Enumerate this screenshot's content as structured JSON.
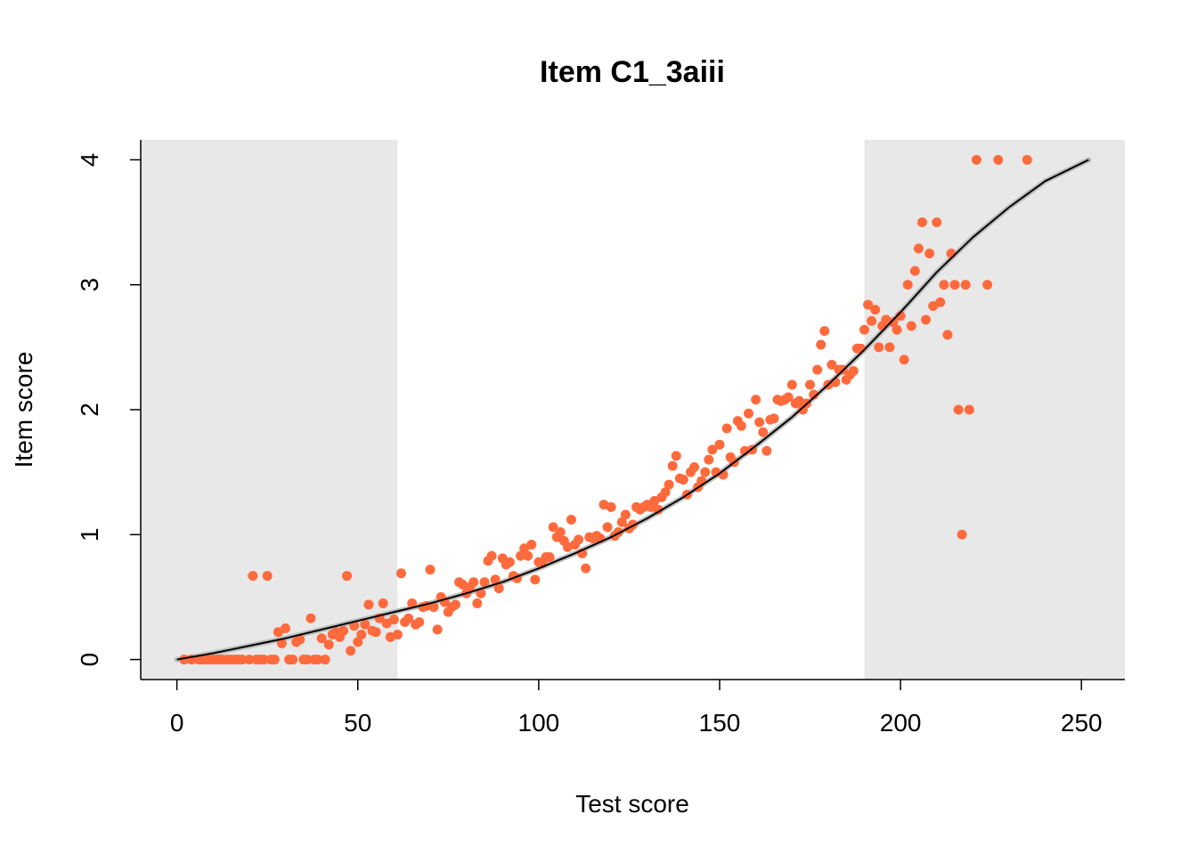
{
  "chart_data": {
    "type": "scatter",
    "title": "Item C1_3aiii",
    "xlabel": "Test score",
    "ylabel": "Item score",
    "xlim": [
      -10,
      262
    ],
    "ylim": [
      -0.16,
      4.16
    ],
    "x_ticks": [
      0,
      50,
      100,
      150,
      200,
      250
    ],
    "y_ticks": [
      0,
      1,
      2,
      3,
      4
    ],
    "x_tick_labels": [
      "0",
      "50",
      "100",
      "150",
      "200",
      "250"
    ],
    "y_tick_labels": [
      "0",
      "1",
      "2",
      "3",
      "4"
    ],
    "grid": false,
    "shaded_ranges": [
      [
        -10,
        61
      ],
      [
        190,
        262
      ]
    ],
    "colors": {
      "points": "#FF6A3D",
      "curve": "#000000",
      "band": "#BDBDBD",
      "shade": "#E8E8E8"
    },
    "fitted_curve": {
      "x": [
        0,
        10,
        20,
        30,
        40,
        50,
        60,
        70,
        80,
        90,
        100,
        110,
        120,
        130,
        140,
        150,
        160,
        170,
        180,
        190,
        200,
        210,
        220,
        230,
        240,
        252
      ],
      "y": [
        0,
        0.05,
        0.11,
        0.17,
        0.24,
        0.31,
        0.38,
        0.45,
        0.53,
        0.62,
        0.73,
        0.85,
        0.98,
        1.13,
        1.3,
        1.49,
        1.71,
        1.94,
        2.2,
        2.48,
        2.78,
        3.1,
        3.38,
        3.62,
        3.83,
        4.0
      ]
    },
    "points": [
      [
        2,
        0
      ],
      [
        4,
        0
      ],
      [
        6,
        0
      ],
      [
        7,
        0
      ],
      [
        8,
        0
      ],
      [
        9,
        0
      ],
      [
        10,
        0
      ],
      [
        11,
        0
      ],
      [
        12,
        0
      ],
      [
        13,
        0
      ],
      [
        14,
        0
      ],
      [
        15,
        0
      ],
      [
        16,
        0
      ],
      [
        17,
        0
      ],
      [
        18,
        0
      ],
      [
        20,
        0
      ],
      [
        21,
        0.67
      ],
      [
        22,
        0
      ],
      [
        23,
        0
      ],
      [
        24,
        0
      ],
      [
        25,
        0.67
      ],
      [
        26,
        0
      ],
      [
        27,
        0
      ],
      [
        28,
        0.22
      ],
      [
        29,
        0.13
      ],
      [
        30,
        0.25
      ],
      [
        31,
        0
      ],
      [
        32,
        0
      ],
      [
        33,
        0.14
      ],
      [
        34,
        0.16
      ],
      [
        35,
        0
      ],
      [
        36,
        0
      ],
      [
        37,
        0.33
      ],
      [
        38,
        0
      ],
      [
        39,
        0
      ],
      [
        40,
        0.17
      ],
      [
        41,
        0
      ],
      [
        42,
        0.12
      ],
      [
        43,
        0.2
      ],
      [
        44,
        0.22
      ],
      [
        45,
        0.18
      ],
      [
        46,
        0.23
      ],
      [
        47,
        0.67
      ],
      [
        48,
        0.07
      ],
      [
        49,
        0.27
      ],
      [
        50,
        0.14
      ],
      [
        51,
        0.2
      ],
      [
        52,
        0.28
      ],
      [
        53,
        0.44
      ],
      [
        54,
        0.23
      ],
      [
        55,
        0.22
      ],
      [
        56,
        0.33
      ],
      [
        57,
        0.45
      ],
      [
        58,
        0.29
      ],
      [
        59,
        0.18
      ],
      [
        60,
        0.32
      ],
      [
        61,
        0.2
      ],
      [
        62,
        0.69
      ],
      [
        63,
        0.3
      ],
      [
        64,
        0.33
      ],
      [
        65,
        0.45
      ],
      [
        66,
        0.28
      ],
      [
        67,
        0.3
      ],
      [
        68,
        0.42
      ],
      [
        69,
        0.43
      ],
      [
        70,
        0.72
      ],
      [
        71,
        0.42
      ],
      [
        72,
        0.24
      ],
      [
        73,
        0.5
      ],
      [
        74,
        0.46
      ],
      [
        75,
        0.38
      ],
      [
        76,
        0.42
      ],
      [
        77,
        0.44
      ],
      [
        78,
        0.62
      ],
      [
        79,
        0.6
      ],
      [
        80,
        0.53
      ],
      [
        81,
        0.58
      ],
      [
        82,
        0.62
      ],
      [
        83,
        0.45
      ],
      [
        84,
        0.53
      ],
      [
        85,
        0.62
      ],
      [
        86,
        0.79
      ],
      [
        87,
        0.83
      ],
      [
        88,
        0.64
      ],
      [
        89,
        0.57
      ],
      [
        90,
        0.81
      ],
      [
        91,
        0.76
      ],
      [
        92,
        0.78
      ],
      [
        93,
        0.67
      ],
      [
        94,
        0.65
      ],
      [
        95,
        0.83
      ],
      [
        96,
        0.89
      ],
      [
        97,
        0.83
      ],
      [
        98,
        0.92
      ],
      [
        99,
        0.64
      ],
      [
        100,
        0.78
      ],
      [
        101,
        0.77
      ],
      [
        102,
        0.82
      ],
      [
        103,
        0.82
      ],
      [
        104,
        1.06
      ],
      [
        105,
        0.98
      ],
      [
        106,
        1.02
      ],
      [
        107,
        0.95
      ],
      [
        108,
        0.9
      ],
      [
        109,
        1.12
      ],
      [
        110,
        0.92
      ],
      [
        111,
        0.96
      ],
      [
        112,
        0.85
      ],
      [
        113,
        0.73
      ],
      [
        114,
        0.98
      ],
      [
        115,
        0.97
      ],
      [
        116,
        0.99
      ],
      [
        117,
        0.97
      ],
      [
        118,
        1.24
      ],
      [
        119,
        1.06
      ],
      [
        120,
        1.22
      ],
      [
        121,
        0.99
      ],
      [
        122,
        1.02
      ],
      [
        123,
        1.1
      ],
      [
        124,
        1.16
      ],
      [
        125,
        1.05
      ],
      [
        126,
        1.08
      ],
      [
        127,
        1.22
      ],
      [
        128,
        1.2
      ],
      [
        129,
        1.22
      ],
      [
        130,
        1.24
      ],
      [
        131,
        1.22
      ],
      [
        132,
        1.27
      ],
      [
        133,
        1.2
      ],
      [
        134,
        1.3
      ],
      [
        135,
        1.34
      ],
      [
        136,
        1.4
      ],
      [
        137,
        1.55
      ],
      [
        138,
        1.63
      ],
      [
        139,
        1.45
      ],
      [
        140,
        1.44
      ],
      [
        141,
        1.32
      ],
      [
        142,
        1.5
      ],
      [
        143,
        1.54
      ],
      [
        144,
        1.38
      ],
      [
        145,
        1.43
      ],
      [
        146,
        1.5
      ],
      [
        147,
        1.6
      ],
      [
        148,
        1.68
      ],
      [
        149,
        1.5
      ],
      [
        150,
        1.72
      ],
      [
        151,
        1.48
      ],
      [
        152,
        1.85
      ],
      [
        153,
        1.62
      ],
      [
        154,
        1.58
      ],
      [
        155,
        1.91
      ],
      [
        156,
        1.87
      ],
      [
        157,
        1.67
      ],
      [
        158,
        1.97
      ],
      [
        159,
        1.68
      ],
      [
        160,
        2.08
      ],
      [
        161,
        1.9
      ],
      [
        162,
        1.82
      ],
      [
        163,
        1.67
      ],
      [
        164,
        1.92
      ],
      [
        165,
        1.93
      ],
      [
        166,
        2.08
      ],
      [
        167,
        2.07
      ],
      [
        168,
        2.08
      ],
      [
        169,
        2.1
      ],
      [
        170,
        2.2
      ],
      [
        171,
        2.05
      ],
      [
        172,
        2.07
      ],
      [
        173,
        2.0
      ],
      [
        174,
        2.05
      ],
      [
        175,
        2.2
      ],
      [
        176,
        2.12
      ],
      [
        177,
        2.32
      ],
      [
        178,
        2.52
      ],
      [
        179,
        2.63
      ],
      [
        180,
        2.2
      ],
      [
        181,
        2.36
      ],
      [
        182,
        2.22
      ],
      [
        183,
        2.32
      ],
      [
        184,
        2.32
      ],
      [
        185,
        2.24
      ],
      [
        186,
        2.28
      ],
      [
        187,
        2.31
      ],
      [
        188,
        2.49
      ],
      [
        189,
        2.49
      ],
      [
        190,
        2.64
      ],
      [
        191,
        2.84
      ],
      [
        192,
        2.71
      ],
      [
        193,
        2.8
      ],
      [
        194,
        2.5
      ],
      [
        195,
        2.67
      ],
      [
        196,
        2.72
      ],
      [
        197,
        2.5
      ],
      [
        198,
        2.7
      ],
      [
        199,
        2.64
      ],
      [
        200,
        2.75
      ],
      [
        201,
        2.4
      ],
      [
        202,
        3.0
      ],
      [
        203,
        2.67
      ],
      [
        204,
        3.11
      ],
      [
        205,
        3.29
      ],
      [
        206,
        3.5
      ],
      [
        207,
        2.72
      ],
      [
        208,
        3.25
      ],
      [
        209,
        2.83
      ],
      [
        210,
        3.5
      ],
      [
        211,
        2.86
      ],
      [
        212,
        3.0
      ],
      [
        213,
        2.6
      ],
      [
        214,
        3.25
      ],
      [
        215,
        3.0
      ],
      [
        216,
        2.0
      ],
      [
        217,
        1.0
      ],
      [
        218,
        3.0
      ],
      [
        219,
        2.0
      ],
      [
        221,
        4.0
      ],
      [
        224,
        3.0
      ],
      [
        227,
        4.0
      ],
      [
        235,
        4.0
      ]
    ]
  }
}
